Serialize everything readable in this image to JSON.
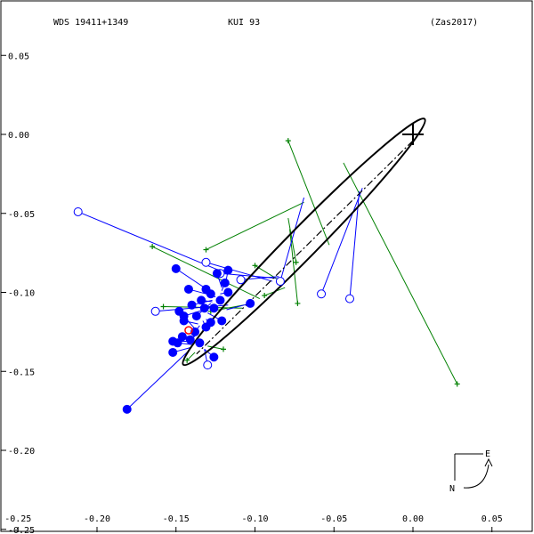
{
  "header": {
    "left": "WDS 19411+1349",
    "center": "KUI  93",
    "right": "(Zas2017)"
  },
  "compass": {
    "east": "E",
    "north": "N"
  },
  "colors": {
    "blue": "#0000ff",
    "green": "#008000",
    "black": "#000000",
    "red": "#ff0000"
  },
  "chart_data": {
    "type": "scatter",
    "xlim": [
      -0.25,
      0.07
    ],
    "ylim": [
      -0.25,
      0.08
    ],
    "x_ticks": [
      -0.25,
      -0.2,
      -0.15,
      -0.1,
      -0.05,
      0.0,
      0.05
    ],
    "x_tick_labels": [
      "-0.25",
      "-0.20",
      "-0.15",
      "-0.10",
      "-0.05",
      "0.00",
      "0.05"
    ],
    "y_ticks": [
      0.05,
      0.0,
      -0.05,
      -0.1,
      -0.15,
      -0.2,
      -0.25
    ],
    "y_tick_labels": [
      "0.05",
      "0.00",
      "-0.05",
      "-0.10",
      "-0.15",
      "-0.20",
      "-0.25"
    ],
    "primary": [
      0.0,
      0.0
    ],
    "orbit": {
      "center": [
        -0.069,
        -0.068
      ],
      "semi_major": 0.109,
      "semi_minor": 0.0095,
      "angle_deg": 45.5
    },
    "line_of_nodes": [
      [
        0.0,
        -0.004
      ],
      [
        -0.137,
        -0.139
      ]
    ],
    "interferometric_filled": [
      {
        "obs": [
          -0.181,
          -0.174
        ],
        "pred": [
          -0.142,
          -0.137
        ]
      },
      {
        "obs": [
          -0.15,
          -0.085
        ],
        "pred": [
          -0.126,
          -0.101
        ]
      },
      {
        "obs": [
          -0.142,
          -0.098
        ],
        "pred": [
          -0.127,
          -0.102
        ]
      },
      {
        "obs": [
          -0.14,
          -0.108
        ],
        "pred": [
          -0.127,
          -0.105
        ]
      },
      {
        "obs": [
          -0.137,
          -0.115
        ],
        "pred": [
          -0.128,
          -0.107
        ]
      },
      {
        "obs": [
          -0.145,
          -0.115
        ],
        "pred": [
          -0.129,
          -0.11
        ]
      },
      {
        "obs": [
          -0.131,
          -0.098
        ],
        "pred": [
          -0.126,
          -0.103
        ]
      },
      {
        "obs": [
          -0.134,
          -0.105
        ],
        "pred": [
          -0.127,
          -0.106
        ]
      },
      {
        "obs": [
          -0.128,
          -0.101
        ],
        "pred": [
          -0.125,
          -0.103
        ]
      },
      {
        "obs": [
          -0.124,
          -0.088
        ],
        "pred": [
          -0.121,
          -0.097
        ]
      },
      {
        "obs": [
          -0.117,
          -0.086
        ],
        "pred": [
          -0.119,
          -0.096
        ]
      },
      {
        "obs": [
          -0.119,
          -0.094
        ],
        "pred": [
          -0.121,
          -0.099
        ]
      },
      {
        "obs": [
          -0.117,
          -0.1
        ],
        "pred": [
          -0.122,
          -0.101
        ]
      },
      {
        "obs": [
          -0.122,
          -0.105
        ],
        "pred": [
          -0.124,
          -0.104
        ]
      },
      {
        "obs": [
          -0.126,
          -0.11
        ],
        "pred": [
          -0.128,
          -0.108
        ]
      },
      {
        "obs": [
          -0.121,
          -0.118
        ],
        "pred": [
          -0.13,
          -0.113
        ]
      },
      {
        "obs": [
          -0.131,
          -0.122
        ],
        "pred": [
          -0.133,
          -0.118
        ]
      },
      {
        "obs": [
          -0.138,
          -0.125
        ],
        "pred": [
          -0.135,
          -0.121
        ]
      },
      {
        "obs": [
          -0.145,
          -0.118
        ],
        "pred": [
          -0.136,
          -0.12
        ]
      },
      {
        "obs": [
          -0.148,
          -0.112
        ],
        "pred": [
          -0.138,
          -0.123
        ]
      },
      {
        "obs": [
          -0.141,
          -0.13
        ],
        "pred": [
          -0.137,
          -0.126
        ]
      },
      {
        "obs": [
          -0.146,
          -0.128
        ],
        "pred": [
          -0.138,
          -0.128
        ]
      },
      {
        "obs": [
          -0.152,
          -0.131
        ],
        "pred": [
          -0.14,
          -0.131
        ]
      },
      {
        "obs": [
          -0.149,
          -0.132
        ],
        "pred": [
          -0.14,
          -0.133
        ]
      },
      {
        "obs": [
          -0.152,
          -0.138
        ],
        "pred": [
          -0.141,
          -0.135
        ]
      },
      {
        "obs": [
          -0.135,
          -0.132
        ],
        "pred": [
          -0.137,
          -0.133
        ]
      },
      {
        "obs": [
          -0.126,
          -0.141
        ],
        "pred": [
          -0.132,
          -0.136
        ]
      },
      {
        "obs": [
          -0.103,
          -0.107
        ],
        "pred": [
          -0.118,
          -0.111
        ]
      },
      {
        "obs": [
          -0.128,
          -0.119
        ],
        "pred": [
          -0.131,
          -0.117
        ]
      },
      {
        "obs": [
          -0.132,
          -0.11
        ],
        "pred": [
          -0.13,
          -0.11
        ]
      }
    ],
    "interferometric_open": [
      {
        "obs": [
          -0.212,
          -0.049
        ],
        "pred": [
          -0.118,
          -0.088
        ]
      },
      {
        "obs": [
          -0.163,
          -0.112
        ],
        "pred": [
          -0.117,
          -0.108
        ]
      },
      {
        "obs": [
          -0.131,
          -0.081
        ],
        "pred": [
          -0.089,
          -0.093
        ]
      },
      {
        "obs": [
          -0.122,
          -0.088
        ],
        "pred": [
          -0.087,
          -0.091
        ]
      },
      {
        "obs": [
          -0.109,
          -0.092
        ],
        "pred": [
          -0.085,
          -0.09
        ]
      },
      {
        "obs": [
          -0.084,
          -0.093
        ],
        "pred": [
          -0.069,
          -0.04
        ]
      },
      {
        "obs": [
          -0.058,
          -0.101
        ],
        "pred": [
          -0.032,
          -0.034
        ]
      },
      {
        "obs": [
          -0.04,
          -0.104
        ],
        "pred": [
          -0.034,
          -0.036
        ]
      },
      {
        "obs": [
          -0.13,
          -0.146
        ],
        "pred": [
          -0.132,
          -0.136
        ]
      }
    ],
    "micrometric": [
      {
        "obs": [
          -0.079,
          -0.004
        ],
        "pred": [
          -0.053,
          -0.07
        ]
      },
      {
        "obs": [
          0.028,
          -0.158
        ],
        "pred": [
          -0.044,
          -0.018
        ]
      },
      {
        "obs": [
          -0.165,
          -0.071
        ],
        "pred": [
          -0.097,
          -0.104
        ]
      },
      {
        "obs": [
          -0.131,
          -0.073
        ],
        "pred": [
          -0.069,
          -0.043
        ]
      },
      {
        "obs": [
          -0.074,
          -0.081
        ],
        "pred": [
          -0.079,
          -0.053
        ]
      },
      {
        "obs": [
          -0.1,
          -0.083
        ],
        "pred": [
          -0.082,
          -0.094
        ]
      },
      {
        "obs": [
          -0.073,
          -0.107
        ],
        "pred": [
          -0.078,
          -0.06
        ]
      },
      {
        "obs": [
          -0.158,
          -0.109
        ],
        "pred": [
          -0.108,
          -0.11
        ]
      },
      {
        "obs": [
          -0.094,
          -0.102
        ],
        "pred": [
          -0.081,
          -0.097
        ]
      },
      {
        "obs": [
          -0.143,
          -0.143
        ],
        "pred": [
          -0.138,
          -0.138
        ]
      },
      {
        "obs": [
          -0.12,
          -0.136
        ],
        "pred": [
          -0.13,
          -0.134
        ]
      },
      {
        "obs": [
          -0.128,
          -0.112
        ],
        "pred": [
          -0.107,
          -0.108
        ]
      }
    ],
    "highlight": [
      -0.142,
      -0.124
    ]
  }
}
